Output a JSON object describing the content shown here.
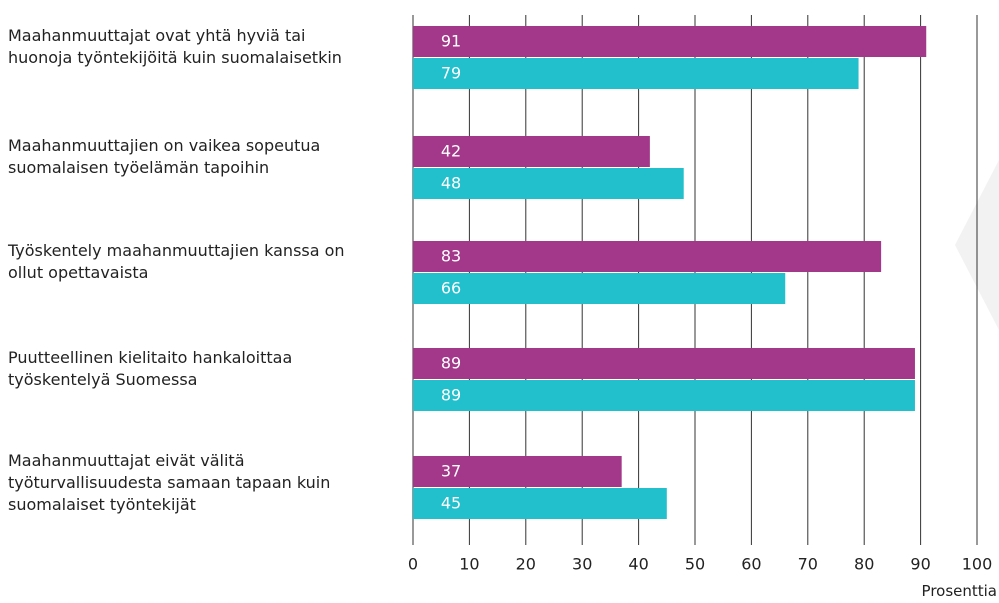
{
  "chart_data": {
    "type": "bar",
    "orientation": "horizontal",
    "categories": [
      "Maahanmuuttajat ovat yhtä hyviä tai huonoja työntekijöitä kuin suomalaisetkin",
      "Maahanmuuttajien on vaikea sopeutua suomalaisen työelämän tapoihin",
      "Työskentely maahanmuuttajien kanssa on ollut opettavaista",
      "Puutteellinen kielitaito hankaloittaa työskentelyä Suomessa",
      "Maahanmuuttajat eivät välitä työturvallisuudesta samaan tapaan kuin suomalaiset työntekijät"
    ],
    "series": [
      {
        "color": "#a3388a",
        "values": [
          91,
          42,
          83,
          89,
          37
        ]
      },
      {
        "color": "#22c0cc",
        "values": [
          79,
          48,
          66,
          89,
          45
        ]
      }
    ],
    "xlim": [
      0,
      100
    ],
    "xticks": [
      0,
      10,
      20,
      30,
      40,
      50,
      60,
      70,
      80,
      90,
      100
    ],
    "xlabel": "Prosenttia",
    "grid": true
  }
}
